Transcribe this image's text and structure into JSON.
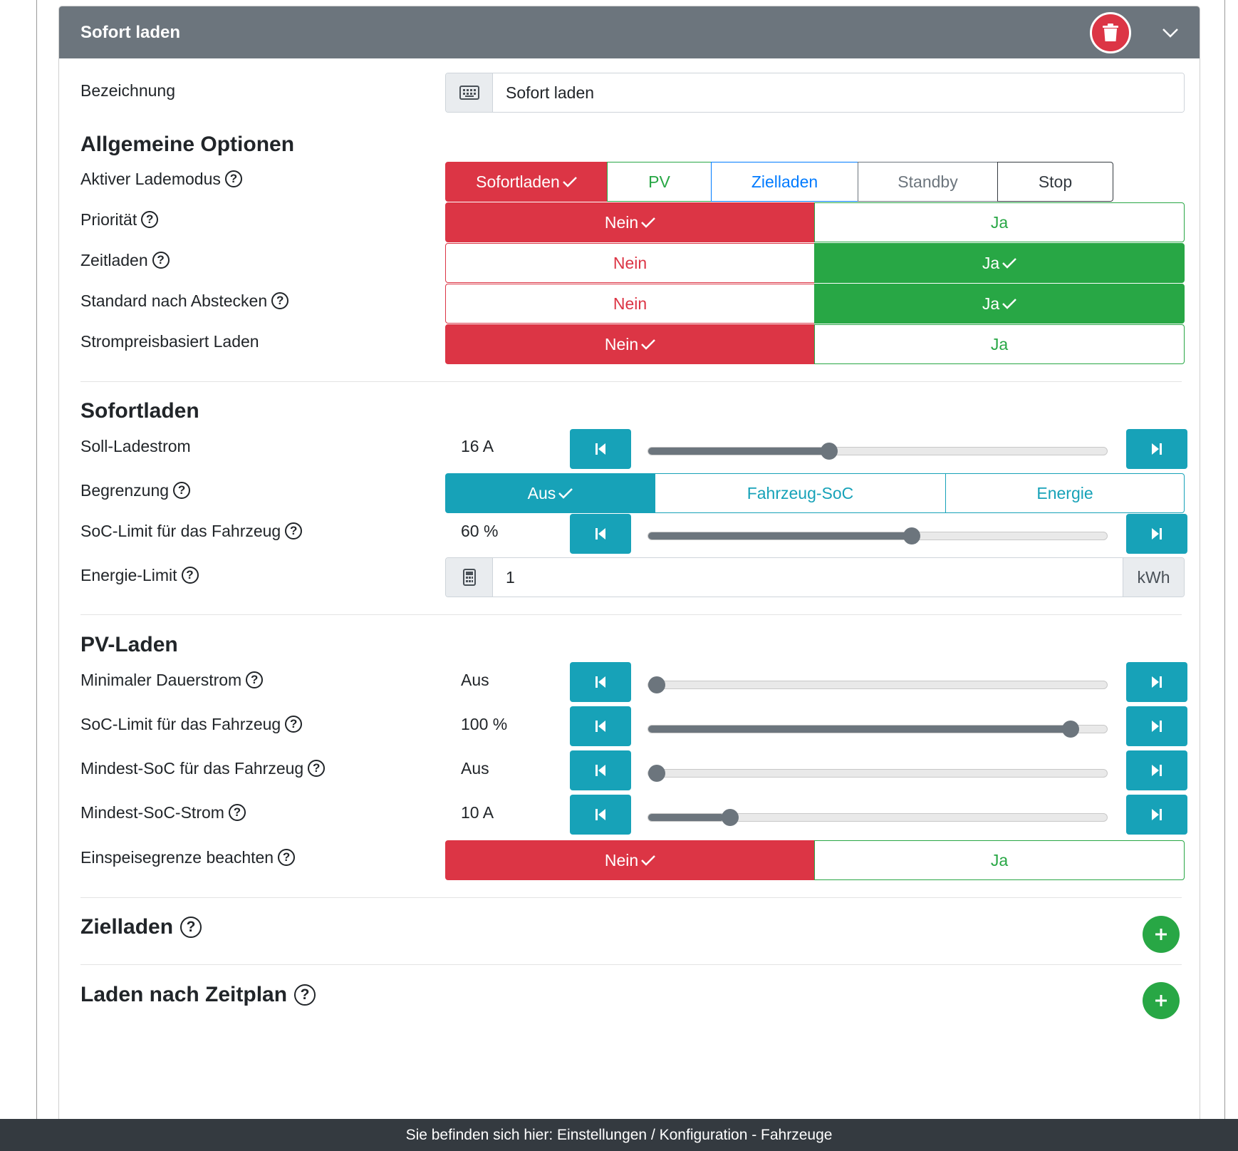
{
  "header": {
    "title": "Sofort laden",
    "delete_icon": "trash-icon",
    "collapse_icon": "chevron-down-icon"
  },
  "bezeichnung": {
    "label": "Bezeichnung",
    "value": "Sofort laden",
    "icon": "keyboard-icon"
  },
  "allgemein": {
    "heading": "Allgemeine Optionen",
    "lademodus": {
      "label": "Aktiver Lademodus",
      "options": [
        "Sofortladen",
        "PV",
        "Zielladen",
        "Standby",
        "Stop"
      ],
      "selected": "Sofortladen"
    },
    "prioritaet": {
      "label": "Priorität",
      "no": "Nein",
      "yes": "Ja",
      "selected": "Nein"
    },
    "zeitladen": {
      "label": "Zeitladen",
      "no": "Nein",
      "yes": "Ja",
      "selected": "Ja"
    },
    "standard": {
      "label": "Standard nach Abstecken",
      "no": "Nein",
      "yes": "Ja",
      "selected": "Ja"
    },
    "strompreis": {
      "label": "Strompreisbasiert Laden",
      "no": "Nein",
      "yes": "Ja",
      "selected": "Nein"
    }
  },
  "sofortladen": {
    "heading": "Sofortladen",
    "soll": {
      "label": "Soll-Ladestrom",
      "value": "16 A",
      "fraction": 0.39
    },
    "begrenzung": {
      "label": "Begrenzung",
      "options": [
        "Aus",
        "Fahrzeug-SoC",
        "Energie"
      ],
      "selected": "Aus"
    },
    "soc_limit": {
      "label": "SoC-Limit für das Fahrzeug",
      "value": "60 %",
      "fraction": 0.577
    },
    "energie": {
      "label": "Energie-Limit",
      "value": "1",
      "unit": "kWh",
      "icon": "calculator-icon"
    }
  },
  "pv": {
    "heading": "PV-Laden",
    "min_dauerstrom": {
      "label": "Minimaler Dauerstrom",
      "value": "Aus",
      "fraction": 0.0
    },
    "soc_limit": {
      "label": "SoC-Limit für das Fahrzeug",
      "value": "100 %",
      "fraction": 0.937
    },
    "mindest_soc": {
      "label": "Mindest-SoC für das Fahrzeug",
      "value": "Aus",
      "fraction": 0.0
    },
    "mindest_soc_strom": {
      "label": "Mindest-SoC-Strom",
      "value": "10 A",
      "fraction": 0.166
    },
    "einspeise": {
      "label": "Einspeisegrenze beachten",
      "no": "Nein",
      "yes": "Ja",
      "selected": "Nein"
    }
  },
  "zielladen": {
    "heading": "Zielladen"
  },
  "zeitplan": {
    "heading": "Laden nach Zeitplan"
  },
  "footer": {
    "text": "Sie befinden sich hier: Einstellungen / Konfiguration - Fahrzeuge"
  },
  "colors": {
    "red": "#dc3545",
    "green": "#28a745",
    "teal": "#17a2b8",
    "blue": "#007bff",
    "grey": "#6c757d",
    "dark": "#343a40"
  }
}
